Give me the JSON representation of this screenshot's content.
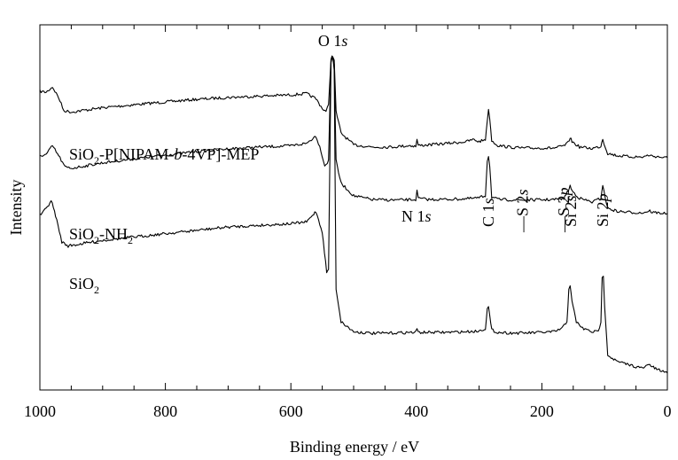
{
  "chart_data": {
    "type": "line",
    "title": "",
    "xlabel": "Binding energy / eV",
    "ylabel": "Intensity",
    "xlim": [
      1000,
      0
    ],
    "x_reversed": true,
    "x_ticks": [
      1000,
      800,
      600,
      400,
      200,
      0
    ],
    "y_ticks": [],
    "grid": false,
    "legend": "none",
    "series": [
      {
        "name": "SiO2-P[NIPAM-b-4VP]-MEP",
        "color": "#000000",
        "points": [
          [
            1000,
            0.835
          ],
          [
            990,
            0.83
          ],
          [
            980,
            0.855
          ],
          [
            970,
            0.805
          ],
          [
            962,
            0.745
          ],
          [
            950,
            0.738
          ],
          [
            900,
            0.758
          ],
          [
            850,
            0.772
          ],
          [
            800,
            0.785
          ],
          [
            750,
            0.797
          ],
          [
            700,
            0.806
          ],
          [
            650,
            0.812
          ],
          [
            600,
            0.818
          ],
          [
            575,
            0.824
          ],
          [
            560,
            0.8
          ],
          [
            550,
            0.755
          ],
          [
            544,
            0.74
          ],
          [
            540,
            0.77
          ],
          [
            536,
            0.99
          ],
          [
            533,
            1.0
          ],
          [
            531,
            0.98
          ],
          [
            528,
            0.74
          ],
          [
            520,
            0.64
          ],
          [
            500,
            0.585
          ],
          [
            470,
            0.575
          ],
          [
            440,
            0.575
          ],
          [
            410,
            0.582
          ],
          [
            401,
            0.578
          ],
          [
            399,
            0.61
          ],
          [
            397,
            0.582
          ],
          [
            380,
            0.585
          ],
          [
            350,
            0.592
          ],
          [
            320,
            0.6
          ],
          [
            310,
            0.61
          ],
          [
            300,
            0.6
          ],
          [
            290,
            0.61
          ],
          [
            287,
            0.7
          ],
          [
            285,
            0.745
          ],
          [
            283,
            0.71
          ],
          [
            280,
            0.605
          ],
          [
            270,
            0.582
          ],
          [
            250,
            0.574
          ],
          [
            230,
            0.57
          ],
          [
            200,
            0.57
          ],
          [
            180,
            0.57
          ],
          [
            165,
            0.58
          ],
          [
            158,
            0.595
          ],
          [
            155,
            0.62
          ],
          [
            152,
            0.6
          ],
          [
            140,
            0.575
          ],
          [
            120,
            0.568
          ],
          [
            106,
            0.578
          ],
          [
            103,
            0.615
          ],
          [
            101,
            0.592
          ],
          [
            95,
            0.545
          ],
          [
            80,
            0.535
          ],
          [
            60,
            0.53
          ],
          [
            40,
            0.528
          ],
          [
            28,
            0.538
          ],
          [
            24,
            0.532
          ],
          [
            15,
            0.53
          ],
          [
            5,
            0.525
          ],
          [
            0,
            0.525
          ]
        ]
      },
      {
        "name": "SiO2-NH2",
        "color": "#000000",
        "points": [
          [
            1000,
            0.6
          ],
          [
            990,
            0.605
          ],
          [
            980,
            0.64
          ],
          [
            970,
            0.6
          ],
          [
            960,
            0.555
          ],
          [
            950,
            0.55
          ],
          [
            900,
            0.572
          ],
          [
            850,
            0.588
          ],
          [
            800,
            0.603
          ],
          [
            750,
            0.617
          ],
          [
            700,
            0.628
          ],
          [
            650,
            0.635
          ],
          [
            600,
            0.64
          ],
          [
            575,
            0.65
          ],
          [
            560,
            0.68
          ],
          [
            552,
            0.62
          ],
          [
            546,
            0.56
          ],
          [
            540,
            0.58
          ],
          [
            536,
            0.98
          ],
          [
            534,
            1.0
          ],
          [
            531,
            0.97
          ],
          [
            528,
            0.58
          ],
          [
            520,
            0.49
          ],
          [
            500,
            0.44
          ],
          [
            470,
            0.425
          ],
          [
            440,
            0.423
          ],
          [
            410,
            0.424
          ],
          [
            401,
            0.425
          ],
          [
            399,
            0.458
          ],
          [
            397,
            0.43
          ],
          [
            380,
            0.425
          ],
          [
            350,
            0.426
          ],
          [
            320,
            0.428
          ],
          [
            300,
            0.432
          ],
          [
            290,
            0.44
          ],
          [
            287,
            0.58
          ],
          [
            285,
            0.6
          ],
          [
            283,
            0.56
          ],
          [
            280,
            0.435
          ],
          [
            270,
            0.425
          ],
          [
            250,
            0.424
          ],
          [
            230,
            0.423
          ],
          [
            200,
            0.424
          ],
          [
            180,
            0.425
          ],
          [
            165,
            0.43
          ],
          [
            158,
            0.46
          ],
          [
            155,
            0.48
          ],
          [
            152,
            0.46
          ],
          [
            140,
            0.43
          ],
          [
            120,
            0.415
          ],
          [
            106,
            0.43
          ],
          [
            103,
            0.485
          ],
          [
            101,
            0.455
          ],
          [
            95,
            0.39
          ],
          [
            80,
            0.378
          ],
          [
            60,
            0.374
          ],
          [
            40,
            0.372
          ],
          [
            28,
            0.38
          ],
          [
            24,
            0.374
          ],
          [
            15,
            0.372
          ],
          [
            5,
            0.37
          ],
          [
            0,
            0.37
          ]
        ]
      },
      {
        "name": "SiO2",
        "color": "#000000",
        "points": [
          [
            1000,
            0.52
          ],
          [
            990,
            0.54
          ],
          [
            982,
            0.565
          ],
          [
            975,
            0.52
          ],
          [
            965,
            0.44
          ],
          [
            955,
            0.428
          ],
          [
            900,
            0.445
          ],
          [
            850,
            0.455
          ],
          [
            800,
            0.465
          ],
          [
            750,
            0.475
          ],
          [
            700,
            0.485
          ],
          [
            650,
            0.49
          ],
          [
            600,
            0.495
          ],
          [
            575,
            0.5
          ],
          [
            560,
            0.532
          ],
          [
            550,
            0.47
          ],
          [
            543,
            0.35
          ],
          [
            540,
            0.355
          ],
          [
            536,
            0.98
          ],
          [
            534,
            1.0
          ],
          [
            531,
            0.96
          ],
          [
            528,
            0.3
          ],
          [
            520,
            0.2
          ],
          [
            500,
            0.17
          ],
          [
            470,
            0.165
          ],
          [
            440,
            0.166
          ],
          [
            410,
            0.168
          ],
          [
            401,
            0.168
          ],
          [
            399,
            0.18
          ],
          [
            397,
            0.168
          ],
          [
            380,
            0.168
          ],
          [
            350,
            0.168
          ],
          [
            320,
            0.17
          ],
          [
            300,
            0.172
          ],
          [
            290,
            0.18
          ],
          [
            287,
            0.238
          ],
          [
            285,
            0.245
          ],
          [
            283,
            0.215
          ],
          [
            280,
            0.175
          ],
          [
            270,
            0.168
          ],
          [
            250,
            0.166
          ],
          [
            230,
            0.166
          ],
          [
            200,
            0.168
          ],
          [
            180,
            0.17
          ],
          [
            168,
            0.18
          ],
          [
            160,
            0.2
          ],
          [
            157,
            0.3
          ],
          [
            155,
            0.31
          ],
          [
            152,
            0.26
          ],
          [
            145,
            0.2
          ],
          [
            135,
            0.18
          ],
          [
            120,
            0.17
          ],
          [
            110,
            0.17
          ],
          [
            106,
            0.2
          ],
          [
            104,
            0.33
          ],
          [
            102,
            0.34
          ],
          [
            100,
            0.25
          ],
          [
            95,
            0.1
          ],
          [
            80,
            0.08
          ],
          [
            60,
            0.07
          ],
          [
            40,
            0.06
          ],
          [
            28,
            0.072
          ],
          [
            24,
            0.064
          ],
          [
            15,
            0.055
          ],
          [
            5,
            0.05
          ],
          [
            0,
            0.045
          ]
        ]
      }
    ],
    "annotations": [
      {
        "text": "O 1",
        "italic": "s",
        "x": 533,
        "y": 1.18,
        "anchor": "middle"
      },
      {
        "text": "N 1",
        "italic": "s",
        "x": 400,
        "y": 0.83,
        "anchor": "middle"
      },
      {
        "text": "C 1",
        "italic": "s",
        "x": 285,
        "y": 0.84,
        "anchor": "middle",
        "vertical": true
      },
      {
        "text": "S 2",
        "italic": "s",
        "x": 231,
        "y": 0.84,
        "anchor": "middle",
        "vertical": true,
        "dash": true
      },
      {
        "text": "S 2",
        "italic": "p",
        "x": 165,
        "y": 0.84,
        "anchor": "middle",
        "vertical": true,
        "dash": true
      },
      {
        "text": "Si 2",
        "italic": "s",
        "x": 154,
        "y": 0.84,
        "anchor": "middle",
        "vertical": true
      },
      {
        "text": "Si 2",
        "italic": "p",
        "x": 103,
        "y": 0.84,
        "anchor": "middle",
        "vertical": true
      }
    ],
    "series_labels": [
      {
        "parts": [
          "SiO",
          "2",
          "-P[NIPAM-",
          "b",
          "-4VP]-MEP"
        ],
        "x": 985,
        "y": 0.945
      },
      {
        "parts": [
          "SiO",
          "2",
          "-NH",
          "2"
        ],
        "x": 985,
        "y": 0.7
      },
      {
        "parts": [
          "SiO",
          "2"
        ],
        "x": 985,
        "y": 0.462
      }
    ]
  }
}
